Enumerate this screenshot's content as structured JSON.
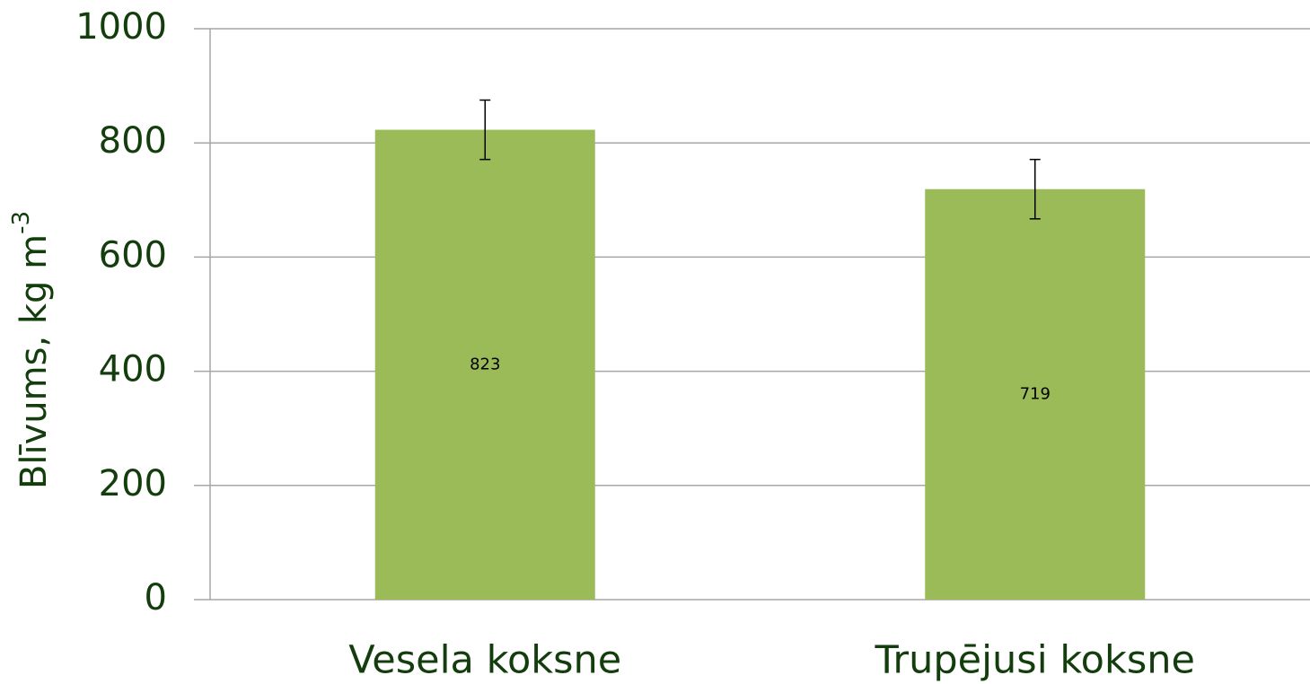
{
  "chart_data": {
    "type": "bar",
    "ylabel": "Blīvums, kg m",
    "ylabel_superscript": "-3",
    "categories": [
      "Vesela koksne",
      "Trupējusi koksne"
    ],
    "values": [
      823,
      719
    ],
    "errors": [
      52,
      52
    ],
    "color": "#9bbb59",
    "ylim": [
      0,
      1000
    ],
    "yticks": [
      0,
      200,
      400,
      600,
      800,
      1000
    ],
    "grid": true
  }
}
